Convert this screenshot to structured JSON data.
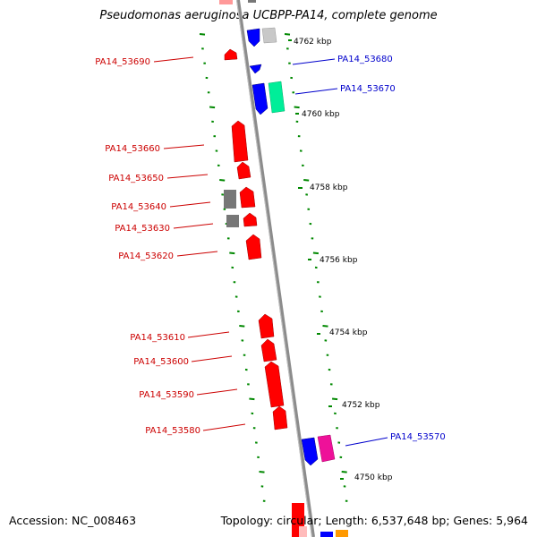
{
  "title": "Pseudomonas aeruginosa UCBPP-PA14, complete genome",
  "footer": {
    "accession": "Accession: NC_008463",
    "summary": "Topology: circular; Length: 6,537,648 bp; Genes: 5,964"
  },
  "scale_labels": [
    "4762 kbp",
    "4760 kbp",
    "4758 kbp",
    "4756 kbp",
    "4754 kbp",
    "4752 kbp",
    "4750 kbp"
  ],
  "colors": {
    "backbone": "#8c8c8c",
    "red": "#ff0000",
    "blue": "#0000ff",
    "grey": "#777777",
    "lightgrey": "#c8c8c8",
    "teal": "#00ee99",
    "magenta": "#ee1199",
    "orange": "#ff9900",
    "pink": "#ffaaaa",
    "ticks": "#008800",
    "label_red": "#cc0000",
    "label_blue": "#0000cc"
  },
  "gene_labels_left": [
    "PA14_53690",
    "PA14_53660",
    "PA14_53650",
    "PA14_53640",
    "PA14_53630",
    "PA14_53620",
    "PA14_53610",
    "PA14_53600",
    "PA14_53590",
    "PA14_53580"
  ],
  "gene_labels_right": [
    "PA14_53680",
    "PA14_53670",
    "PA14_53570"
  ]
}
